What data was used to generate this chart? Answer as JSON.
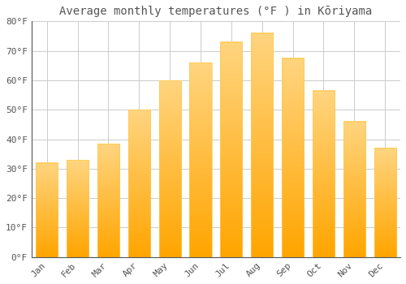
{
  "title": "Average monthly temperatures (°F ) in Kōriyama",
  "months": [
    "Jan",
    "Feb",
    "Mar",
    "Apr",
    "May",
    "Jun",
    "Jul",
    "Aug",
    "Sep",
    "Oct",
    "Nov",
    "Dec"
  ],
  "values": [
    32,
    33,
    38.5,
    50,
    60,
    66,
    73,
    76,
    67.5,
    56.5,
    46,
    37
  ],
  "bar_color_bottom": "#FFA500",
  "bar_color_top": "#FFD580",
  "background_color": "#FFFFFF",
  "grid_color": "#CCCCCC",
  "ylim": [
    0,
    80
  ],
  "yticks": [
    0,
    10,
    20,
    30,
    40,
    50,
    60,
    70,
    80
  ],
  "ytick_labels": [
    "0°F",
    "10°F",
    "20°F",
    "30°F",
    "40°F",
    "50°F",
    "60°F",
    "70°F",
    "80°F"
  ],
  "title_fontsize": 10,
  "tick_fontsize": 8,
  "font_color": "#555555"
}
